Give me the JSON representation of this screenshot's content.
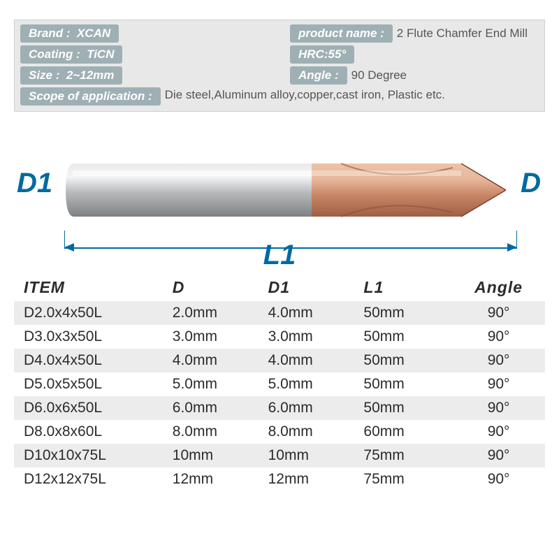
{
  "info": {
    "brand_label": "Brand",
    "brand_value": "XCAN",
    "product_label": "product name",
    "product_value": "2 Flute Chamfer End Mill",
    "coating_label": "Coating",
    "coating_value": "TiCN",
    "hrc_label_value": "HRC:55°",
    "size_label": "Size",
    "size_value": "2~12mm",
    "angle_label": "Angle",
    "angle_value": "90 Degree",
    "scope_label": "Scope of application",
    "scope_value": "Die steel,Aluminum alloy,copper,cast iron, Plastic etc."
  },
  "diagram": {
    "d1_label": "D1",
    "d_label": "D",
    "l1_label": "L1",
    "shank_color": "#b7b9bb",
    "shank_hi": "#e6e7e8",
    "tip_color": "#c88565",
    "tip_hi": "#e7b79b",
    "dim_color": "#006a9e"
  },
  "table": {
    "columns": [
      "ITEM",
      "D",
      "D1",
      "L1",
      "Angle"
    ],
    "col_widths": [
      "28%",
      "18%",
      "18%",
      "18%",
      "18%"
    ],
    "header_fontsize": 23,
    "body_fontsize": 21,
    "row_bg_odd": "#ececec",
    "row_bg_even": "#ffffff",
    "rows": [
      [
        "D2.0x4x50L",
        "2.0mm",
        "4.0mm",
        "50mm",
        "90°"
      ],
      [
        "D3.0x3x50L",
        "3.0mm",
        "3.0mm",
        "50mm",
        "90°"
      ],
      [
        "D4.0x4x50L",
        "4.0mm",
        "4.0mm",
        "50mm",
        "90°"
      ],
      [
        "D5.0x5x50L",
        "5.0mm",
        "5.0mm",
        "50mm",
        "90°"
      ],
      [
        "D6.0x6x50L",
        "6.0mm",
        "6.0mm",
        "50mm",
        "90°"
      ],
      [
        "D8.0x8x60L",
        "8.0mm",
        "8.0mm",
        "60mm",
        "90°"
      ],
      [
        "D10x10x75L",
        "10mm",
        "10mm",
        "75mm",
        "90°"
      ],
      [
        "D12x12x75L",
        "12mm",
        "12mm",
        "75mm",
        "90°"
      ]
    ]
  }
}
